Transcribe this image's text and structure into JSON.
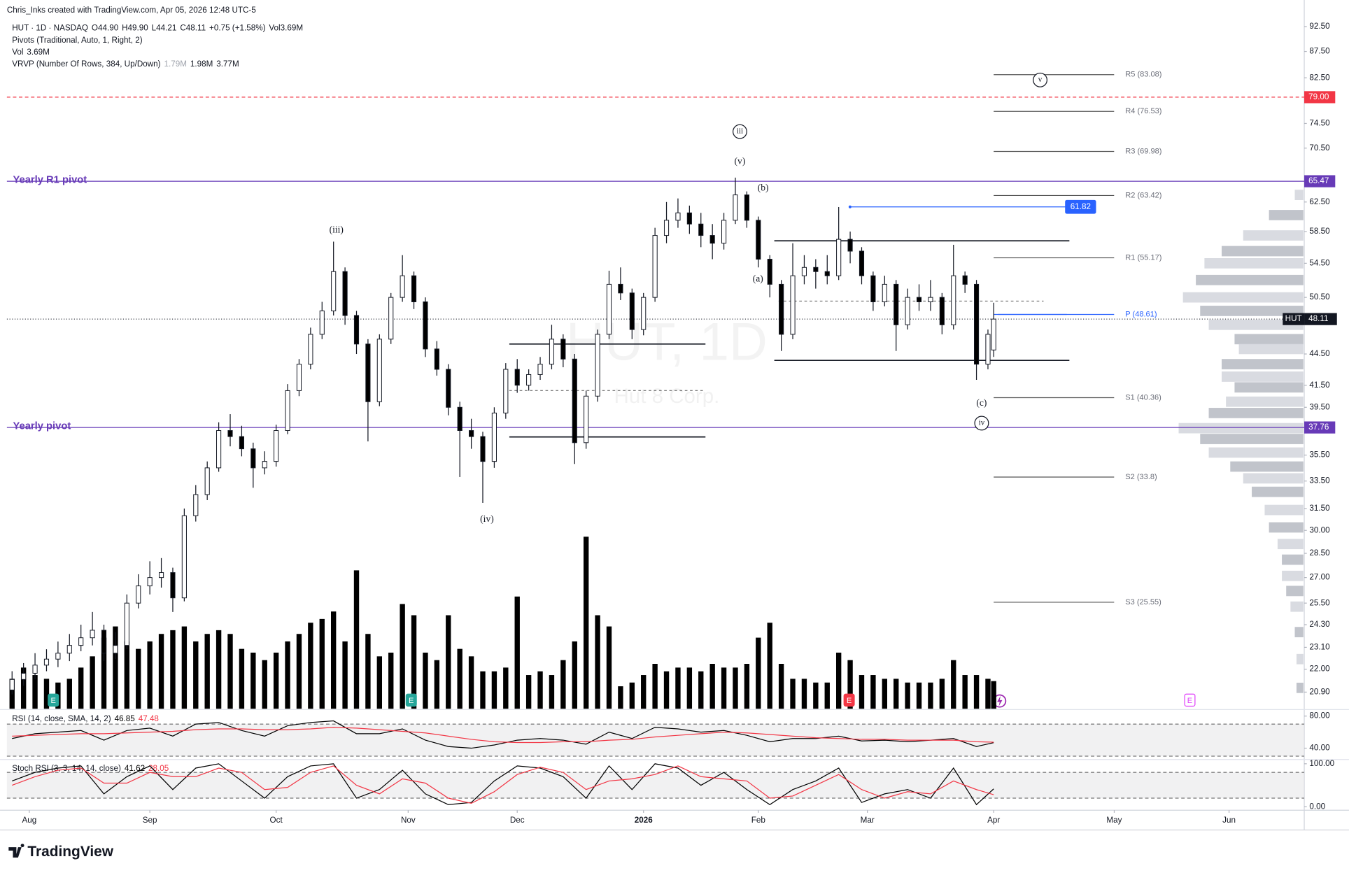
{
  "chart_data": {
    "type": "candlestick",
    "log_scale": true,
    "grid": false,
    "header": {
      "credit": "Chris_Inks created with TradingView.com, Apr 05, 2026 12:48 UTC-5",
      "symbol": "HUT · 1D · NASDAQ",
      "ohlc": [
        "O",
        "44.90",
        "H",
        "49.90",
        "L",
        "44.21",
        "C",
        "48.11"
      ],
      "change": "+0.75 (+1.58%)",
      "vol": [
        "Vol",
        "3.69M"
      ],
      "pivots_label": "Pivots (Traditional, Auto, 1, Right, 2)",
      "vol_line": [
        "Vol",
        "3.69M"
      ],
      "vrvp": [
        "VRVP (Number Of Rows, 384, Up/Down)",
        "1.79M",
        "1.98M",
        "3.77M"
      ]
    },
    "watermark": {
      "title": "HUT, 1D",
      "subtitle": "Hut 8 Corp."
    },
    "x": [
      0,
      2,
      4,
      6,
      8,
      10,
      12,
      14,
      16,
      18,
      20,
      22,
      24,
      26,
      28,
      30,
      32,
      34,
      36,
      38,
      40,
      42,
      44,
      46,
      48,
      50,
      52,
      54,
      56,
      58,
      60,
      62,
      64,
      66,
      68,
      70,
      72,
      74,
      76,
      78,
      80,
      82,
      84,
      86,
      88,
      90,
      92,
      94,
      96,
      98,
      100,
      102,
      104,
      106,
      108,
      110,
      112,
      114,
      116,
      118,
      120,
      122,
      124,
      126,
      128,
      130,
      132,
      134,
      136,
      138,
      140,
      142,
      144,
      146,
      148,
      150,
      152,
      154,
      156,
      158,
      160,
      162,
      164,
      166,
      168,
      170,
      171
    ],
    "candles": [
      [
        21.0,
        21.9,
        20.8,
        21.5
      ],
      [
        21.5,
        22.3,
        21.2,
        21.8
      ],
      [
        21.8,
        22.8,
        21.5,
        22.2
      ],
      [
        22.2,
        23.0,
        21.9,
        22.5
      ],
      [
        22.5,
        23.4,
        22.1,
        22.8
      ],
      [
        22.8,
        23.8,
        22.4,
        23.2
      ],
      [
        23.2,
        24.3,
        22.9,
        23.6
      ],
      [
        23.6,
        25.0,
        23.2,
        24.0
      ],
      [
        24.0,
        24.3,
        22.4,
        22.8
      ],
      [
        22.8,
        23.9,
        22.5,
        23.2
      ],
      [
        23.2,
        26.0,
        23.0,
        25.5
      ],
      [
        25.5,
        27.2,
        25.2,
        26.5
      ],
      [
        26.5,
        28.0,
        26.0,
        27.0
      ],
      [
        27.0,
        28.2,
        26.4,
        27.3
      ],
      [
        27.3,
        27.6,
        25.0,
        25.8
      ],
      [
        25.8,
        31.5,
        25.6,
        31.0
      ],
      [
        31.0,
        33.2,
        30.6,
        32.5
      ],
      [
        32.5,
        35.0,
        32.1,
        34.5
      ],
      [
        34.5,
        38.2,
        34.2,
        37.5
      ],
      [
        37.5,
        38.9,
        36.2,
        37.0
      ],
      [
        37.0,
        37.9,
        35.4,
        36.0
      ],
      [
        36.0,
        36.5,
        33.0,
        34.5
      ],
      [
        34.5,
        35.8,
        34.0,
        35.0
      ],
      [
        35.0,
        38.0,
        34.6,
        37.5
      ],
      [
        37.5,
        41.6,
        37.2,
        41.0
      ],
      [
        41.0,
        44.0,
        40.5,
        43.5
      ],
      [
        43.5,
        47.2,
        43.0,
        46.5
      ],
      [
        46.5,
        50.0,
        46.0,
        49.0
      ],
      [
        49.0,
        57.2,
        48.5,
        53.5
      ],
      [
        53.5,
        54.0,
        47.5,
        48.5
      ],
      [
        48.5,
        49.0,
        44.5,
        45.5
      ],
      [
        45.5,
        46.0,
        36.6,
        40.0
      ],
      [
        40.0,
        46.5,
        39.6,
        46.0
      ],
      [
        46.0,
        51.0,
        45.5,
        50.5
      ],
      [
        50.5,
        55.5,
        50.0,
        53.0
      ],
      [
        53.0,
        53.5,
        49.2,
        50.0
      ],
      [
        50.0,
        50.5,
        44.2,
        45.0
      ],
      [
        45.0,
        45.8,
        42.4,
        43.0
      ],
      [
        43.0,
        43.5,
        38.8,
        39.5
      ],
      [
        39.5,
        40.0,
        33.8,
        37.5
      ],
      [
        37.5,
        38.5,
        36.0,
        37.0
      ],
      [
        37.0,
        37.4,
        31.9,
        35.0
      ],
      [
        35.0,
        39.5,
        34.5,
        39.0
      ],
      [
        39.0,
        43.6,
        38.5,
        43.0
      ],
      [
        43.0,
        44.0,
        40.8,
        41.5
      ],
      [
        41.5,
        43.0,
        41.0,
        42.5
      ],
      [
        42.5,
        44.2,
        42.0,
        43.5
      ],
      [
        43.5,
        47.5,
        43.0,
        46.0
      ],
      [
        46.0,
        46.5,
        43.2,
        44.0
      ],
      [
        44.0,
        44.5,
        34.8,
        36.5
      ],
      [
        36.5,
        41.0,
        36.0,
        40.5
      ],
      [
        40.5,
        47.0,
        40.0,
        46.5
      ],
      [
        46.5,
        53.6,
        46.0,
        52.0
      ],
      [
        52.0,
        54.0,
        50.2,
        51.0
      ],
      [
        51.0,
        51.5,
        46.0,
        47.0
      ],
      [
        47.0,
        51.0,
        46.4,
        50.5
      ],
      [
        50.5,
        59.0,
        50.0,
        58.0
      ],
      [
        58.0,
        62.5,
        57.0,
        60.0
      ],
      [
        60.0,
        63.0,
        59.0,
        61.0
      ],
      [
        61.0,
        62.0,
        58.2,
        59.5
      ],
      [
        59.5,
        61.0,
        56.5,
        58.0
      ],
      [
        58.0,
        59.5,
        55.0,
        57.0
      ],
      [
        57.0,
        61.0,
        56.2,
        60.0
      ],
      [
        60.0,
        66.0,
        59.5,
        63.5
      ],
      [
        63.5,
        64.0,
        59.0,
        60.0
      ],
      [
        60.0,
        60.5,
        54.0,
        55.0
      ],
      [
        55.0,
        55.5,
        50.5,
        52.0
      ],
      [
        52.0,
        52.5,
        44.8,
        46.5
      ],
      [
        46.5,
        57.0,
        46.0,
        53.0
      ],
      [
        53.0,
        55.5,
        52.0,
        54.0
      ],
      [
        54.0,
        55.0,
        51.5,
        53.5
      ],
      [
        53.5,
        55.5,
        52.0,
        53.0
      ],
      [
        53.0,
        61.8,
        52.5,
        57.5
      ],
      [
        57.5,
        58.5,
        54.5,
        56.0
      ],
      [
        56.0,
        56.5,
        52.0,
        53.0
      ],
      [
        53.0,
        53.5,
        49.0,
        50.0
      ],
      [
        50.0,
        53.0,
        49.5,
        52.0
      ],
      [
        52.0,
        52.5,
        44.8,
        47.5
      ],
      [
        47.5,
        51.5,
        47.0,
        50.5
      ],
      [
        50.5,
        52.0,
        49.0,
        50.0
      ],
      [
        50.0,
        52.5,
        49.0,
        50.5
      ],
      [
        50.5,
        51.0,
        46.5,
        47.5
      ],
      [
        47.5,
        56.8,
        47.0,
        53.0
      ],
      [
        53.0,
        53.5,
        51.0,
        52.0
      ],
      [
        52.0,
        52.5,
        42.0,
        43.5
      ],
      [
        43.5,
        47.0,
        43.0,
        46.5
      ],
      [
        44.9,
        49.9,
        44.21,
        48.11
      ]
    ],
    "volume": [
      4.0,
      5.5,
      4.5,
      4.0,
      3.5,
      4.0,
      5.5,
      7.0,
      9.5,
      11.0,
      9.0,
      8.0,
      9.0,
      10.0,
      10.5,
      11.0,
      9.0,
      10.0,
      10.5,
      10.0,
      8.0,
      7.5,
      6.5,
      7.5,
      9.0,
      10.0,
      11.5,
      12.0,
      13.0,
      9.0,
      18.5,
      10.0,
      7.0,
      7.5,
      14.0,
      12.5,
      7.5,
      6.5,
      12.5,
      8.0,
      7.0,
      5.0,
      5.0,
      5.5,
      15.0,
      4.5,
      5.0,
      4.5,
      6.5,
      9.0,
      23.0,
      12.5,
      11.0,
      3.0,
      3.5,
      4.5,
      6.0,
      5.0,
      5.5,
      5.5,
      5.0,
      6.0,
      5.5,
      5.5,
      6.0,
      9.5,
      11.5,
      6.0,
      4.0,
      4.0,
      3.5,
      3.5,
      7.5,
      6.5,
      4.5,
      4.5,
      4.0,
      4.0,
      3.5,
      3.5,
      3.5,
      4.0,
      6.5,
      4.5,
      4.5,
      4.0,
      3.69
    ],
    "bull_color": "#ffffff",
    "bear_color": "#000000",
    "volume_color": "#000000",
    "xlim": [
      -0.9,
      225.1
    ],
    "xticks": [
      {
        "value": 3,
        "label": "Aug"
      },
      {
        "value": 24,
        "label": "Sep"
      },
      {
        "value": 46,
        "label": "Oct"
      },
      {
        "value": 69,
        "label": "Nov"
      },
      {
        "value": 88,
        "label": "Dec"
      },
      {
        "value": 110,
        "label": "2026"
      },
      {
        "value": 130,
        "label": "Feb"
      },
      {
        "value": 149,
        "label": "Mar"
      },
      {
        "value": 171,
        "label": "Apr"
      },
      {
        "value": 192,
        "label": "May"
      },
      {
        "value": 212,
        "label": "Jun"
      }
    ],
    "ylim": [
      20.1,
      94.1
    ],
    "yticks": [
      {
        "value": 92.5,
        "label": "92.50"
      },
      {
        "value": 87.5,
        "label": "87.50"
      },
      {
        "value": 82.5,
        "label": "82.50"
      },
      {
        "value": 74.5,
        "label": "74.50"
      },
      {
        "value": 70.5,
        "label": "70.50"
      },
      {
        "value": 62.5,
        "label": "62.50"
      },
      {
        "value": 58.5,
        "label": "58.50"
      },
      {
        "value": 54.5,
        "label": "54.50"
      },
      {
        "value": 50.5,
        "label": "50.50"
      },
      {
        "value": 44.5,
        "label": "44.50"
      },
      {
        "value": 41.5,
        "label": "41.50"
      },
      {
        "value": 39.5,
        "label": "39.50"
      },
      {
        "value": 35.5,
        "label": "35.50"
      },
      {
        "value": 33.5,
        "label": "33.50"
      },
      {
        "value": 31.5,
        "label": "31.50"
      },
      {
        "value": 30,
        "label": "30.00"
      },
      {
        "value": 28.5,
        "label": "28.50"
      },
      {
        "value": 27,
        "label": "27.00"
      },
      {
        "value": 25.5,
        "label": "25.50"
      },
      {
        "value": 24.3,
        "label": "24.30"
      },
      {
        "value": 23.1,
        "label": "23.10"
      },
      {
        "value": 22,
        "label": "22.00"
      },
      {
        "value": 20.9,
        "label": "20.90"
      }
    ],
    "yearly_pivots": [
      {
        "name": "Yearly R1 pivot",
        "value": 65.47
      },
      {
        "name": "Yearly pivot",
        "value": 37.76
      }
    ],
    "pivot_color": "#673ab7",
    "alert": {
      "value": 79,
      "label": "79.00",
      "color": "#f23645"
    },
    "last": {
      "symbol": "HUT",
      "value": 48.11
    },
    "target": {
      "value": 61.82,
      "color": "#2962ff"
    },
    "pivots": [
      {
        "label": "R5 (83.08)",
        "value": 83.08
      },
      {
        "label": "R4 (76.53)",
        "value": 76.53
      },
      {
        "label": "R3 (69.98)",
        "value": 69.98
      },
      {
        "label": "R2 (63.42)",
        "value": 63.42
      },
      {
        "label": "R1 (55.17)",
        "value": 55.17
      },
      {
        "label": "P (48.61)",
        "value": 48.61,
        "color": "#2962ff"
      },
      {
        "label": "S1 (40.36)",
        "value": 40.36
      },
      {
        "label": "S2 (33.8)",
        "value": 33.8
      },
      {
        "label": "S3 (25.55)",
        "value": 25.55
      }
    ],
    "annotations": [
      "(iii)",
      "(iv)",
      "iii",
      "(v)",
      "(b)",
      "(a)",
      "(c)",
      "iv",
      "v"
    ],
    "events": [
      "E",
      "E",
      "E",
      "E"
    ],
    "volume_profile": {
      "prices": [
        63.5,
        60.7,
        58,
        56,
        54.5,
        52.5,
        50.5,
        49,
        47.5,
        46,
        45,
        43.5,
        42.3,
        41.3,
        40,
        39,
        37.7,
        36.8,
        35.7,
        34.6,
        33.7,
        32.7,
        31.4,
        30.2,
        29.1,
        28.1,
        27.1,
        26.2,
        25.3,
        23.9,
        22.5,
        21.1
      ],
      "volumes": [
        10,
        40,
        70,
        95,
        115,
        125,
        140,
        120,
        110,
        80,
        75,
        95,
        95,
        80,
        90,
        110,
        145,
        120,
        110,
        85,
        70,
        60,
        45,
        40,
        30,
        25,
        25,
        20,
        15,
        10,
        8,
        8
      ]
    },
    "rsi": {
      "label": "RSI (14, close, SMA, 14, 2)",
      "x": [
        0,
        4,
        8,
        12,
        16,
        20,
        24,
        28,
        32,
        36,
        40,
        44,
        48,
        52,
        56,
        60,
        64,
        68,
        72,
        76,
        80,
        84,
        88,
        92,
        96,
        100,
        104,
        108,
        112,
        116,
        120,
        124,
        128,
        132,
        136,
        140,
        144,
        148,
        152,
        156,
        160,
        164,
        168,
        171
      ],
      "values": [
        52,
        58,
        60,
        62,
        50,
        62,
        65,
        55,
        70,
        72,
        62,
        55,
        68,
        72,
        74,
        58,
        58,
        64,
        50,
        42,
        40,
        44,
        50,
        52,
        50,
        45,
        60,
        52,
        66,
        64,
        60,
        62,
        56,
        48,
        52,
        52,
        55,
        49,
        50,
        48,
        50,
        52,
        42,
        46.85
      ],
      "ma": [
        55,
        56,
        57,
        58,
        58,
        59,
        60,
        61,
        63,
        64,
        64,
        63,
        63,
        64,
        66,
        65,
        63,
        61,
        59,
        55,
        51,
        48,
        47,
        47,
        48,
        48,
        50,
        51,
        54,
        56,
        58,
        60,
        59,
        57,
        55,
        53,
        52,
        51,
        51,
        50,
        50,
        50,
        48,
        47.48
      ],
      "color": "#000000",
      "ma_color": "#f23645",
      "ylim": [
        27,
        87
      ],
      "yticks": [
        {
          "value": 80,
          "label": "80.00"
        },
        {
          "value": 40,
          "label": "40.00"
        }
      ],
      "bands": [
        30,
        70
      ]
    },
    "stoch": {
      "label": "Stoch RSI (3, 3, 14, 14, close)",
      "x": [
        0,
        4,
        8,
        12,
        16,
        20,
        24,
        28,
        32,
        36,
        40,
        44,
        48,
        52,
        56,
        60,
        64,
        68,
        72,
        76,
        80,
        84,
        88,
        92,
        96,
        100,
        104,
        108,
        112,
        116,
        120,
        124,
        128,
        132,
        136,
        140,
        144,
        148,
        152,
        156,
        160,
        164,
        168,
        171
      ],
      "k": [
        60,
        80,
        90,
        95,
        30,
        70,
        95,
        40,
        90,
        100,
        60,
        20,
        70,
        95,
        100,
        20,
        40,
        85,
        30,
        5,
        10,
        60,
        95,
        90,
        70,
        20,
        95,
        40,
        100,
        90,
        50,
        80,
        40,
        5,
        40,
        60,
        90,
        10,
        30,
        40,
        20,
        90,
        5,
        41.62
      ],
      "d": [
        50,
        70,
        85,
        90,
        55,
        55,
        80,
        70,
        70,
        90,
        80,
        40,
        45,
        80,
        95,
        50,
        30,
        65,
        55,
        20,
        8,
        35,
        75,
        92,
        80,
        40,
        60,
        65,
        75,
        95,
        70,
        65,
        60,
        20,
        25,
        50,
        75,
        40,
        20,
        35,
        30,
        60,
        40,
        28.05
      ],
      "k_color": "#000000",
      "d_color": "#f23645",
      "ylim": [
        -6,
        108
      ],
      "yticks": [
        {
          "value": 100,
          "label": "100.00"
        },
        {
          "value": 0,
          "label": "0.00"
        }
      ],
      "bands": [
        20,
        80
      ]
    },
    "brand": "TradingView"
  }
}
